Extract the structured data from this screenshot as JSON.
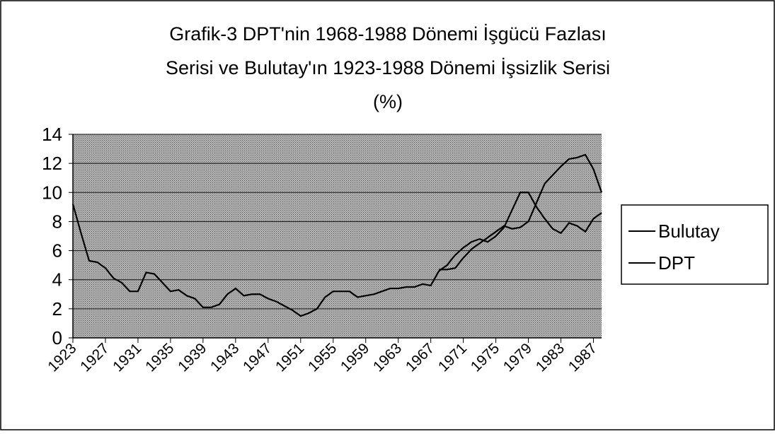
{
  "chart_data": {
    "type": "line",
    "title": [
      "Grafik-3 DPT'nin 1968-1988 Dönemi İşgücü Fazlası",
      "Serisi ve Bulutay'ın 1923-1988 Dönemi İşsizlik Serisi",
      "(%)"
    ],
    "x": [
      1923,
      1924,
      1925,
      1926,
      1927,
      1928,
      1929,
      1930,
      1931,
      1932,
      1933,
      1934,
      1935,
      1936,
      1937,
      1938,
      1939,
      1940,
      1941,
      1942,
      1943,
      1944,
      1945,
      1946,
      1947,
      1948,
      1949,
      1950,
      1951,
      1952,
      1953,
      1954,
      1955,
      1956,
      1957,
      1958,
      1959,
      1960,
      1961,
      1962,
      1963,
      1964,
      1965,
      1966,
      1967,
      1968,
      1969,
      1970,
      1971,
      1972,
      1973,
      1974,
      1975,
      1976,
      1977,
      1978,
      1979,
      1980,
      1981,
      1982,
      1983,
      1984,
      1985,
      1986,
      1987,
      1988
    ],
    "series": [
      {
        "name": "Bulutay",
        "color": "#000000",
        "values": [
          9.2,
          7.2,
          5.3,
          5.2,
          4.8,
          4.1,
          3.8,
          3.2,
          3.2,
          4.5,
          4.4,
          3.8,
          3.2,
          3.3,
          2.9,
          2.7,
          2.1,
          2.1,
          2.3,
          3.0,
          3.4,
          2.9,
          3.0,
          3.0,
          2.7,
          2.5,
          2.2,
          1.9,
          1.5,
          1.7,
          2.0,
          2.8,
          3.2,
          3.2,
          3.2,
          2.8,
          2.9,
          3.0,
          3.2,
          3.4,
          3.4,
          3.5,
          3.5,
          3.7,
          3.6,
          4.6,
          5.0,
          5.7,
          6.2,
          6.6,
          6.8,
          6.6,
          7.0,
          7.6,
          8.8,
          10.0,
          10.0,
          9.0,
          8.2,
          7.5,
          7.2,
          7.9,
          7.7,
          7.3,
          8.2,
          8.6
        ]
      },
      {
        "name": "DPT",
        "color": "#000000",
        "values": [
          null,
          null,
          null,
          null,
          null,
          null,
          null,
          null,
          null,
          null,
          null,
          null,
          null,
          null,
          null,
          null,
          null,
          null,
          null,
          null,
          null,
          null,
          null,
          null,
          null,
          null,
          null,
          null,
          null,
          null,
          null,
          null,
          null,
          null,
          null,
          null,
          null,
          null,
          null,
          null,
          null,
          null,
          null,
          null,
          null,
          4.7,
          4.7,
          4.8,
          5.5,
          6.1,
          6.5,
          6.9,
          7.3,
          7.7,
          7.5,
          7.6,
          8.0,
          9.3,
          10.6,
          11.2,
          11.8,
          12.3,
          12.4,
          12.6,
          11.6,
          10.0
        ]
      }
    ],
    "xlim": [
      1923,
      1988
    ],
    "xticks": [
      1923,
      1927,
      1931,
      1935,
      1939,
      1943,
      1947,
      1951,
      1955,
      1959,
      1963,
      1967,
      1971,
      1975,
      1979,
      1983,
      1987
    ],
    "ylim": [
      0,
      14
    ],
    "yticks": [
      0,
      2,
      4,
      6,
      8,
      10,
      12,
      14
    ],
    "grid": true,
    "legend": "right"
  }
}
